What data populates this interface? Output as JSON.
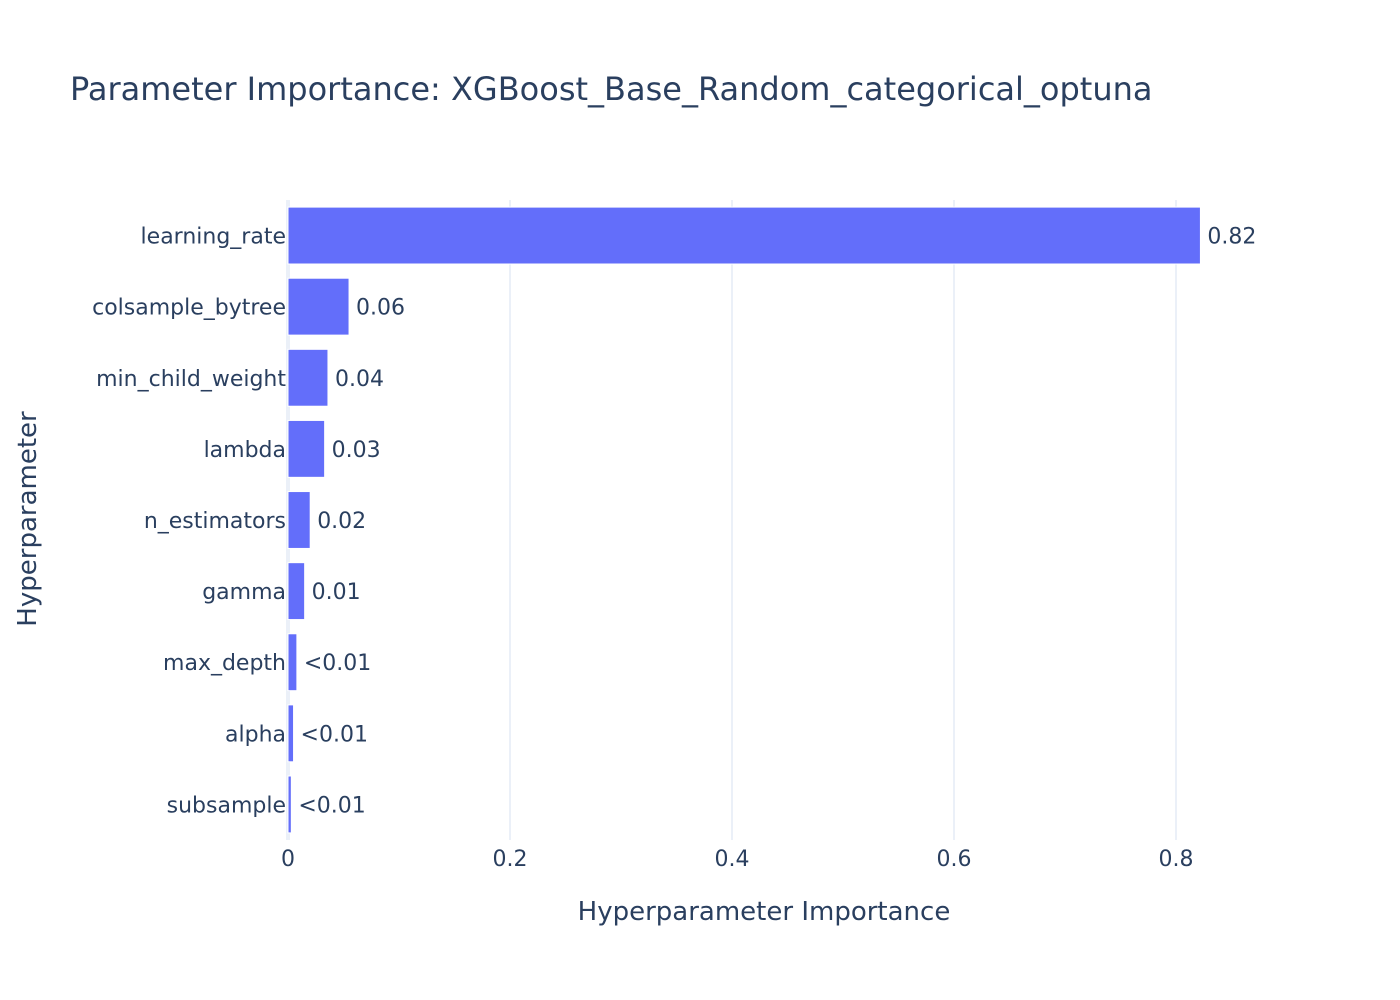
{
  "chart_data": {
    "type": "bar",
    "orientation": "horizontal",
    "title": "Parameter Importance: XGBoost_Base_Random_categorical_optuna",
    "xlabel": "Hyperparameter Importance",
    "ylabel": "Hyperparameter",
    "xlim": [
      0,
      0.93
    ],
    "xticks": [
      0,
      0.2,
      0.4,
      0.6,
      0.8
    ],
    "xtick_labels": [
      "0",
      "0.2",
      "0.4",
      "0.6",
      "0.8"
    ],
    "grid": "vertical",
    "bar_color": "#636efa",
    "categories": [
      "learning_rate",
      "colsample_bytree",
      "min_child_weight",
      "lambda",
      "n_estimators",
      "gamma",
      "max_depth",
      "alpha",
      "subsample"
    ],
    "values": [
      0.822,
      0.055,
      0.036,
      0.033,
      0.02,
      0.015,
      0.008,
      0.005,
      0.003
    ],
    "value_labels": [
      "0.82",
      "0.06",
      "0.04",
      "0.03",
      "0.02",
      "0.01",
      "<0.01",
      "<0.01",
      "<0.01"
    ]
  }
}
